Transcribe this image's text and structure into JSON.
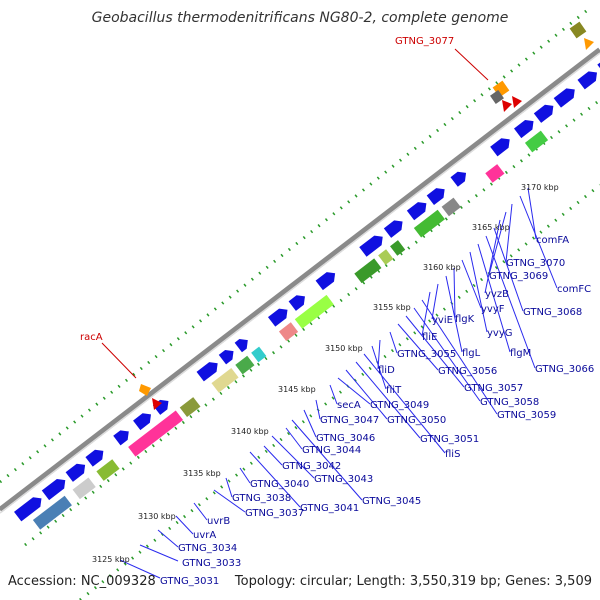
{
  "title": "Geobacillus thermodenitrificans NG80-2, complete genome",
  "footer": {
    "accession": "Accession: NC_009328",
    "topology": "Topology: circular; Length: 3,550,319 bp; Genes: 3,509"
  },
  "scale": [
    "3125 kbp",
    "3130 kbp",
    "3135 kbp",
    "3140 kbp",
    "3145 kbp",
    "3150 kbp",
    "3155 kbp",
    "3160 kbp",
    "3165 kbp",
    "3170 kbp"
  ],
  "labels_forward": [
    "racA",
    "GTNG_3077"
  ],
  "labels_reverse": [
    "GTNG_3031",
    "GTNG_3033",
    "GTNG_3034",
    "uvrA",
    "uvrB",
    "GTNG_3037",
    "GTNG_3038",
    "GTNG_3040",
    "GTNG_3041",
    "GTNG_3042",
    "GTNG_3043",
    "GTNG_3044",
    "GTNG_3045",
    "GTNG_3046",
    "GTNG_3047",
    "secA",
    "GTNG_3049",
    "GTNG_3050",
    "GTNG_3051",
    "fliS",
    "fliT",
    "fliD",
    "GTNG_3055",
    "GTNG_3056",
    "GTNG_3057",
    "GTNG_3058",
    "GTNG_3059",
    "fliE",
    "yviE",
    "flgL",
    "flgK",
    "yvyF",
    "yvyG",
    "flgM",
    "GTNG_3066",
    "GTNG_3068",
    "yvzB",
    "GTNG_3069",
    "GTNG_3070",
    "comFC",
    "comFA"
  ],
  "colors": {
    "backbone": "#8a8a8a",
    "forward_label": "#cc0000",
    "reverse_label": "#0a0a9a",
    "cds": "#1010e0",
    "dotted_track": "#2a9a2a"
  }
}
